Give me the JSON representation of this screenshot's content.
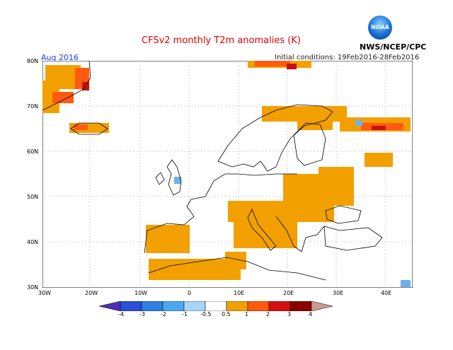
{
  "header": {
    "title": "CFSv2 monthly T2m anomalies (K)",
    "month": "Aug 2016",
    "initial_conditions": "Initial conditions: 19Feb2016-28Feb2016",
    "credit": "NWS/NCEP/CPC",
    "logo_text": "NOAA"
  },
  "axes": {
    "lat_labels": [
      "80N",
      "70N",
      "60N",
      "50N",
      "40N",
      "30N"
    ],
    "lon_labels": [
      "30W",
      "20W",
      "10W",
      "0",
      "10E",
      "20E",
      "30E",
      "40E"
    ]
  },
  "colorbar": {
    "labels": [
      "-4",
      "-3",
      "-2",
      "-1",
      "-0.5",
      "0.5",
      "1",
      "2",
      "3",
      "4"
    ],
    "colors": [
      "#4b2fb6",
      "#2b4fd6",
      "#2f7fe0",
      "#4fa6ee",
      "#a8d4f8",
      "#ffffff",
      "#f2a000",
      "#ff5a10",
      "#d41010",
      "#8b0000",
      "#c79a92"
    ]
  },
  "colors": {
    "title": "#e00000",
    "month": "#1a3cff",
    "anomaly_warm": "#f2a000",
    "anomaly_warmer": "#ff5a10",
    "anomaly_hot": "#c81010",
    "anomaly_cold": "#6fb0ee"
  }
}
